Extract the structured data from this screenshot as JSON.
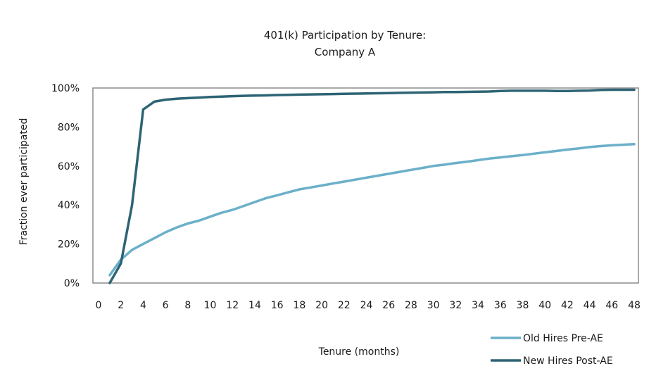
{
  "chart_data": {
    "type": "line",
    "title": [
      "401(k) Participation by Tenure:",
      "Company A"
    ],
    "xlabel": "Tenure (months)",
    "ylabel": "Fraction ever participated",
    "xlim": [
      0,
      48
    ],
    "ylim": [
      0,
      1
    ],
    "x_ticks": [
      "0",
      "2",
      "4",
      "6",
      "8",
      "10",
      "12",
      "14",
      "16",
      "18",
      "20",
      "22",
      "24",
      "26",
      "28",
      "30",
      "32",
      "34",
      "36",
      "38",
      "40",
      "42",
      "44",
      "46",
      "48"
    ],
    "y_ticks": [
      "0%",
      "20%",
      "40%",
      "60%",
      "80%",
      "100%"
    ],
    "grid": false,
    "legend_position": "bottom-right",
    "series": [
      {
        "name": "Old Hires Pre-AE",
        "color": "#6bb0c9",
        "x": [
          1,
          2,
          3,
          4,
          5,
          6,
          7,
          8,
          9,
          10,
          11,
          12,
          13,
          14,
          15,
          16,
          17,
          18,
          19,
          20,
          21,
          22,
          23,
          24,
          25,
          26,
          27,
          28,
          29,
          30,
          31,
          32,
          33,
          34,
          35,
          36,
          37,
          38,
          39,
          40,
          41,
          42,
          43,
          44,
          45,
          46,
          47,
          48
        ],
        "values": [
          0.04,
          0.12,
          0.17,
          0.2,
          0.23,
          0.26,
          0.285,
          0.305,
          0.32,
          0.34,
          0.36,
          0.375,
          0.395,
          0.415,
          0.435,
          0.45,
          0.465,
          0.48,
          0.49,
          0.5,
          0.51,
          0.52,
          0.53,
          0.54,
          0.55,
          0.56,
          0.57,
          0.58,
          0.59,
          0.6,
          0.607,
          0.615,
          0.622,
          0.63,
          0.638,
          0.644,
          0.65,
          0.656,
          0.663,
          0.67,
          0.677,
          0.684,
          0.69,
          0.697,
          0.702,
          0.706,
          0.709,
          0.712
        ]
      },
      {
        "name": "New Hires Post-AE",
        "color": "#2d6474",
        "x": [
          1,
          2,
          3,
          4,
          5,
          6,
          7,
          8,
          9,
          10,
          11,
          12,
          13,
          14,
          15,
          16,
          17,
          18,
          19,
          20,
          21,
          22,
          23,
          24,
          25,
          26,
          27,
          28,
          29,
          30,
          31,
          32,
          33,
          34,
          35,
          36,
          37,
          38,
          39,
          40,
          41,
          42,
          43,
          44,
          45,
          46,
          47,
          48
        ],
        "values": [
          0.0,
          0.1,
          0.4,
          0.89,
          0.93,
          0.94,
          0.945,
          0.948,
          0.951,
          0.954,
          0.956,
          0.958,
          0.96,
          0.961,
          0.962,
          0.964,
          0.965,
          0.966,
          0.967,
          0.968,
          0.969,
          0.97,
          0.971,
          0.972,
          0.973,
          0.974,
          0.975,
          0.976,
          0.977,
          0.978,
          0.979,
          0.979,
          0.98,
          0.981,
          0.982,
          0.985,
          0.986,
          0.986,
          0.986,
          0.986,
          0.985,
          0.985,
          0.986,
          0.987,
          0.99,
          0.991,
          0.991,
          0.991
        ]
      }
    ]
  }
}
